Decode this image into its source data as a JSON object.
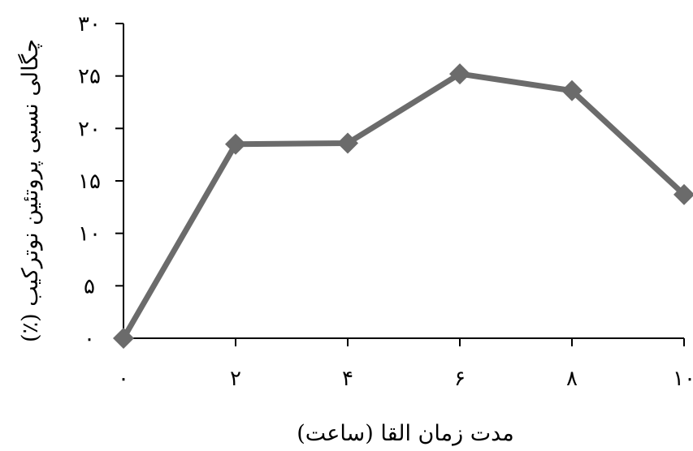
{
  "chart_data": {
    "type": "line",
    "title": "",
    "xlabel": "مدت زمان القا (ساعت)",
    "ylabel": "چگالی نسبی پروتئین نوترکیب (٪)",
    "x": [
      0,
      2,
      4,
      6,
      8,
      10
    ],
    "x_tick_labels": [
      "۰",
      "۲",
      "۴",
      "۶",
      "۸",
      "۱۰"
    ],
    "y_ticks": [
      0,
      5,
      10,
      15,
      20,
      25,
      30
    ],
    "y_tick_labels": [
      "۰",
      "۵",
      "۱۰",
      "۱۵",
      "۲۰",
      "۲۵",
      "۳۰"
    ],
    "xlim": [
      0,
      10
    ],
    "ylim": [
      0,
      30
    ],
    "series": [
      {
        "values": [
          0,
          18.5,
          18.6,
          25.2,
          23.6,
          13.7
        ]
      }
    ],
    "grid": false,
    "legend": "none",
    "line_color": "#6b6b6b",
    "axis_color": "#000000"
  }
}
